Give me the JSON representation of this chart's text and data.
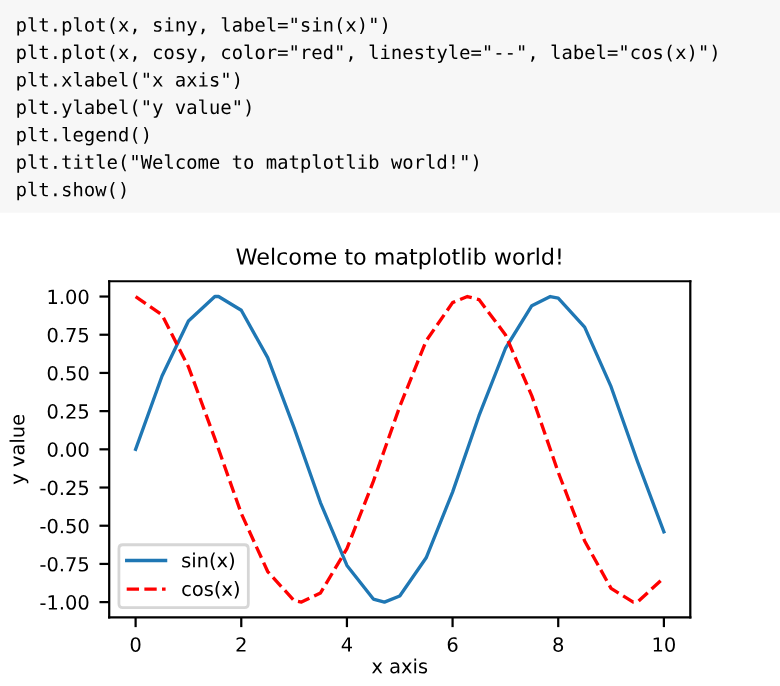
{
  "chart_data": {
    "type": "line",
    "title": "Welcome to matplotlib world!",
    "xlabel": "x axis",
    "ylabel": "y value",
    "annotations": [
      "plt.plot(x, siny, label=\"sin(x)\")",
      "plt.plot(x, cosy, color=\"red\", linestyle=\"--\", label=\"cos(x)\")",
      "plt.xlabel(\"x axis\")",
      "plt.ylabel(\"y value\")",
      "plt.legend()",
      "plt.title(\"Welcome to matplotlib world!\")",
      "plt.show()"
    ],
    "series": [
      {
        "name": "sin(x)",
        "color": "#1f77b4",
        "line_style": "solid",
        "x": [
          0,
          0.5,
          1,
          1.5,
          1.57,
          2,
          2.5,
          3,
          3.5,
          4,
          4.5,
          4.71,
          5,
          5.5,
          6,
          6.5,
          7,
          7.5,
          7.85,
          8,
          8.5,
          9,
          9.5,
          10
        ],
        "values": [
          0,
          0.48,
          0.84,
          1.0,
          1.0,
          0.91,
          0.6,
          0.14,
          -0.35,
          -0.76,
          -0.98,
          -1.0,
          -0.96,
          -0.71,
          -0.28,
          0.22,
          0.66,
          0.94,
          1.0,
          0.99,
          0.8,
          0.41,
          -0.08,
          -0.54
        ]
      },
      {
        "name": "cos(x)",
        "color": "#ff0000",
        "line_style": "dashed",
        "x": [
          0,
          0.5,
          1,
          1.5,
          2,
          2.5,
          3,
          3.14,
          3.5,
          4,
          4.5,
          5,
          5.5,
          6,
          6.28,
          6.5,
          7,
          7.5,
          8,
          8.5,
          9,
          9.42,
          9.5,
          10
        ],
        "values": [
          1.0,
          0.88,
          0.54,
          0.07,
          -0.42,
          -0.8,
          -0.99,
          -1.0,
          -0.94,
          -0.65,
          -0.21,
          0.28,
          0.71,
          0.96,
          1.0,
          0.98,
          0.75,
          0.35,
          -0.15,
          -0.6,
          -0.91,
          -1.0,
          -1.0,
          -0.84
        ]
      }
    ],
    "xlim": [
      -0.5,
      10.5
    ],
    "ylim": [
      -1.1,
      1.1
    ],
    "xticks": [
      0,
      2,
      4,
      6,
      8,
      10
    ],
    "yticks": [
      {
        "value": -1,
        "label": "-1.00"
      },
      {
        "value": -0.75,
        "label": "-0.75"
      },
      {
        "value": -0.5,
        "label": "-0.50"
      },
      {
        "value": -0.25,
        "label": "-0.25"
      },
      {
        "value": 0,
        "label": "0.00"
      },
      {
        "value": 0.25,
        "label": "0.25"
      },
      {
        "value": 0.5,
        "label": "0.50"
      },
      {
        "value": 0.75,
        "label": "0.75"
      },
      {
        "value": 1,
        "label": "1.00"
      }
    ],
    "legend": "bottom left",
    "grid": false,
    "marker": "none"
  }
}
